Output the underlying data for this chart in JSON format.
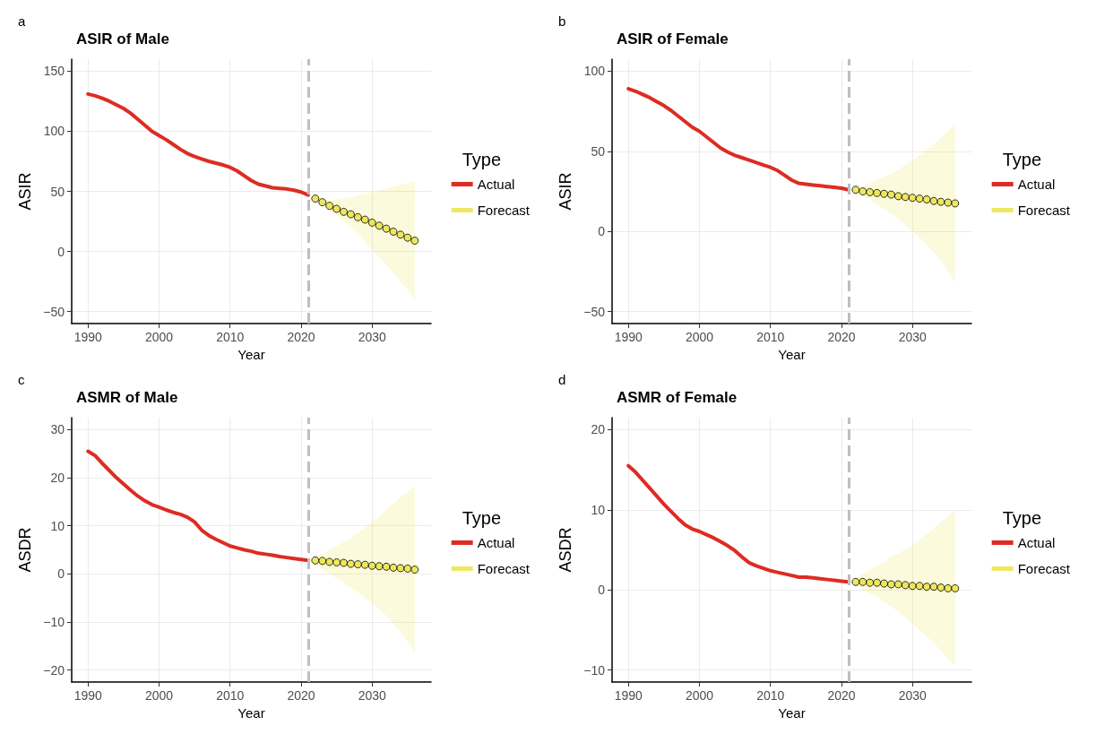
{
  "chart_data": [
    {
      "type": "line",
      "title": "ASIR of Male",
      "xlabel": "Year",
      "ylabel": "ASIR",
      "legend_title": "Type",
      "annotations": [
        "a"
      ],
      "xlim": [
        1987.7,
        2038.3
      ],
      "xticks": [
        1990,
        2000,
        2010,
        2020,
        2030
      ],
      "ylim": [
        -60,
        160
      ],
      "yticks": [
        -50,
        0,
        50,
        100,
        150
      ],
      "grid": true,
      "legend": "right",
      "ref_lines": [
        {
          "axis": "x",
          "value": 2021,
          "color": "#bebebe",
          "line_style": "dashed"
        }
      ],
      "series": [
        {
          "name": "Actual",
          "color": "#dd2c23",
          "marker": "none",
          "x": [
            1990,
            1991,
            1992,
            1993,
            1994,
            1995,
            1996,
            1997,
            1998,
            1999,
            2000,
            2001,
            2002,
            2003,
            2004,
            2005,
            2006,
            2007,
            2008,
            2009,
            2010,
            2011,
            2012,
            2013,
            2014,
            2015,
            2016,
            2017,
            2018,
            2019,
            2020,
            2021
          ],
          "values": [
            131,
            129.5,
            127.5,
            125,
            122,
            119,
            115,
            110,
            105,
            100,
            96.5,
            93,
            89,
            85,
            81.5,
            79,
            77,
            75,
            73.5,
            72,
            70,
            67,
            63,
            59,
            56,
            54.5,
            53,
            52.5,
            52,
            51,
            49.5,
            47
          ]
        },
        {
          "name": "Forecast",
          "type": "scatter",
          "color": "#e9e23c",
          "marker": "circle",
          "x": [
            2022,
            2023,
            2024,
            2025,
            2026,
            2027,
            2028,
            2029,
            2030,
            2031,
            2032,
            2033,
            2034,
            2035,
            2036
          ],
          "values": [
            44,
            41,
            38,
            35.5,
            33,
            31,
            28.5,
            26.5,
            24,
            21.5,
            19,
            16.5,
            14,
            11.5,
            9
          ],
          "lower": [
            43,
            39,
            35,
            30,
            25,
            20,
            14,
            8,
            1,
            -5,
            -11,
            -18,
            -25,
            -32,
            -40
          ],
          "upper": [
            45,
            43.5,
            43,
            43.5,
            44,
            45,
            46.5,
            48,
            49.5,
            51,
            52.5,
            54,
            55.5,
            57,
            58.5
          ]
        }
      ]
    },
    {
      "type": "line",
      "title": "ASIR of Female",
      "xlabel": "Year",
      "ylabel": "ASIR",
      "legend_title": "Type",
      "annotations": [
        "b"
      ],
      "xlim": [
        1987.7,
        2038.3
      ],
      "xticks": [
        1990,
        2000,
        2010,
        2020,
        2030
      ],
      "ylim": [
        -57.5,
        107.5
      ],
      "yticks": [
        -50,
        0,
        50,
        100
      ],
      "grid": true,
      "legend": "right",
      "ref_lines": [
        {
          "axis": "x",
          "value": 2021,
          "color": "#bebebe",
          "line_style": "dashed"
        }
      ],
      "series": [
        {
          "name": "Actual",
          "color": "#dd2c23",
          "marker": "none",
          "x": [
            1990,
            1991,
            1992,
            1993,
            1994,
            1995,
            1996,
            1997,
            1998,
            1999,
            2000,
            2001,
            2002,
            2003,
            2004,
            2005,
            2006,
            2007,
            2008,
            2009,
            2010,
            2011,
            2012,
            2013,
            2014,
            2015,
            2016,
            2017,
            2018,
            2019,
            2020,
            2021
          ],
          "values": [
            89,
            87.5,
            85.5,
            83.5,
            81,
            78.5,
            75.5,
            72,
            68.5,
            65,
            62.5,
            59,
            55.5,
            52,
            49.5,
            47.5,
            46,
            44.5,
            43,
            41.5,
            40,
            38,
            35,
            32,
            30,
            29.5,
            29,
            28.5,
            28,
            27.5,
            27,
            26
          ]
        },
        {
          "name": "Forecast",
          "type": "scatter",
          "color": "#e9e23c",
          "marker": "circle",
          "x": [
            2022,
            2023,
            2024,
            2025,
            2026,
            2027,
            2028,
            2029,
            2030,
            2031,
            2032,
            2033,
            2034,
            2035,
            2036
          ],
          "values": [
            26,
            25,
            24.5,
            24,
            23.5,
            23,
            22,
            21.5,
            21,
            20.5,
            20,
            19,
            18.5,
            18,
            17.5
          ],
          "lower": [
            null,
            22.5,
            20,
            17,
            14,
            11,
            7.5,
            4,
            0,
            -4,
            -8.5,
            -13,
            -18,
            -25,
            -31.5
          ],
          "upper": [
            null,
            28.5,
            30,
            32,
            34,
            36,
            38.5,
            41.5,
            44.5,
            47.5,
            51,
            54.5,
            58.5,
            62.5,
            66.5
          ]
        }
      ]
    },
    {
      "type": "line",
      "title": "ASMR of Male",
      "xlabel": "Year",
      "ylabel": "ASDR",
      "legend_title": "Type",
      "annotations": [
        "c"
      ],
      "xlim": [
        1987.7,
        2038.3
      ],
      "xticks": [
        1990,
        2000,
        2010,
        2020,
        2030
      ],
      "ylim": [
        -22.5,
        32.5
      ],
      "yticks": [
        -20,
        -10,
        0,
        10,
        20,
        30
      ],
      "grid": true,
      "legend": "right",
      "ref_lines": [
        {
          "axis": "x",
          "value": 2021,
          "color": "#bebebe",
          "line_style": "dashed"
        }
      ],
      "series": [
        {
          "name": "Actual",
          "color": "#dd2c23",
          "marker": "none",
          "x": [
            1990,
            1991,
            1992,
            1993,
            1994,
            1995,
            1996,
            1997,
            1998,
            1999,
            2000,
            2001,
            2002,
            2003,
            2004,
            2005,
            2006,
            2007,
            2008,
            2009,
            2010,
            2011,
            2012,
            2013,
            2014,
            2015,
            2016,
            2017,
            2018,
            2019,
            2020,
            2021
          ],
          "values": [
            25.5,
            24.6,
            23,
            21.5,
            20,
            18.7,
            17.4,
            16.2,
            15.2,
            14.4,
            13.9,
            13.3,
            12.8,
            12.4,
            11.8,
            10.8,
            9.1,
            8,
            7.2,
            6.5,
            5.8,
            5.4,
            5,
            4.7,
            4.3,
            4.1,
            3.9,
            3.6,
            3.4,
            3.2,
            3,
            2.8
          ]
        },
        {
          "name": "Forecast",
          "type": "scatter",
          "color": "#e9e23c",
          "marker": "circle",
          "x": [
            2022,
            2023,
            2024,
            2025,
            2026,
            2027,
            2028,
            2029,
            2030,
            2031,
            2032,
            2033,
            2034,
            2035,
            2036
          ],
          "values": [
            2.8,
            2.7,
            2.5,
            2.4,
            2.3,
            2.1,
            2,
            1.9,
            1.7,
            1.6,
            1.5,
            1.3,
            1.2,
            1.1,
            0.9
          ],
          "lower": [
            2,
            1,
            0,
            -0.9,
            -1.8,
            -2.8,
            -3.8,
            -4.9,
            -6,
            -7.3,
            -8.7,
            -10.3,
            -12.1,
            -14.2,
            -16.6
          ],
          "upper": [
            3.5,
            4.3,
            5,
            5.8,
            6.6,
            7.5,
            8.5,
            9.6,
            10.8,
            12,
            13.3,
            14.6,
            15.9,
            17.1,
            18.3
          ]
        }
      ]
    },
    {
      "type": "line",
      "title": "ASMR of Female",
      "xlabel": "Year",
      "ylabel": "ASDR",
      "legend_title": "Type",
      "annotations": [
        "d"
      ],
      "xlim": [
        1987.7,
        2038.3
      ],
      "xticks": [
        1990,
        2000,
        2010,
        2020,
        2030
      ],
      "ylim": [
        -11.5,
        21.5
      ],
      "yticks": [
        -10,
        0,
        10,
        20
      ],
      "grid": true,
      "legend": "right",
      "ref_lines": [
        {
          "axis": "x",
          "value": 2021,
          "color": "#bebebe",
          "line_style": "dashed"
        }
      ],
      "series": [
        {
          "name": "Actual",
          "color": "#dd2c23",
          "marker": "none",
          "x": [
            1990,
            1991,
            1992,
            1993,
            1994,
            1995,
            1996,
            1997,
            1998,
            1999,
            2000,
            2001,
            2002,
            2003,
            2004,
            2005,
            2006,
            2007,
            2008,
            2009,
            2010,
            2011,
            2012,
            2013,
            2014,
            2015,
            2016,
            2017,
            2018,
            2019,
            2020,
            2021
          ],
          "values": [
            15.5,
            14.7,
            13.7,
            12.7,
            11.7,
            10.7,
            9.8,
            8.9,
            8.1,
            7.6,
            7.3,
            6.9,
            6.5,
            6,
            5.5,
            4.9,
            4.1,
            3.4,
            3,
            2.7,
            2.4,
            2.2,
            2,
            1.8,
            1.6,
            1.6,
            1.5,
            1.4,
            1.3,
            1.2,
            1.1,
            1
          ]
        },
        {
          "name": "Forecast",
          "type": "scatter",
          "color": "#e9e23c",
          "marker": "circle",
          "x": [
            2022,
            2023,
            2024,
            2025,
            2026,
            2027,
            2028,
            2029,
            2030,
            2031,
            2032,
            2033,
            2034,
            2035,
            2036
          ],
          "values": [
            1,
            1,
            0.9,
            0.9,
            0.8,
            0.7,
            0.7,
            0.6,
            0.5,
            0.5,
            0.4,
            0.4,
            0.3,
            0.2,
            0.2
          ],
          "lower": [
            0.6,
            0.1,
            -0.4,
            -0.9,
            -1.5,
            -2.1,
            -2.7,
            -3.4,
            -4.2,
            -5,
            -5.8,
            -6.6,
            -7.6,
            -8.6,
            -9.6
          ],
          "upper": [
            1.5,
            2,
            2.5,
            3,
            3.5,
            4.1,
            4.6,
            5.1,
            5.6,
            6.3,
            7,
            7.7,
            8.5,
            9.2,
            10
          ]
        }
      ]
    }
  ]
}
